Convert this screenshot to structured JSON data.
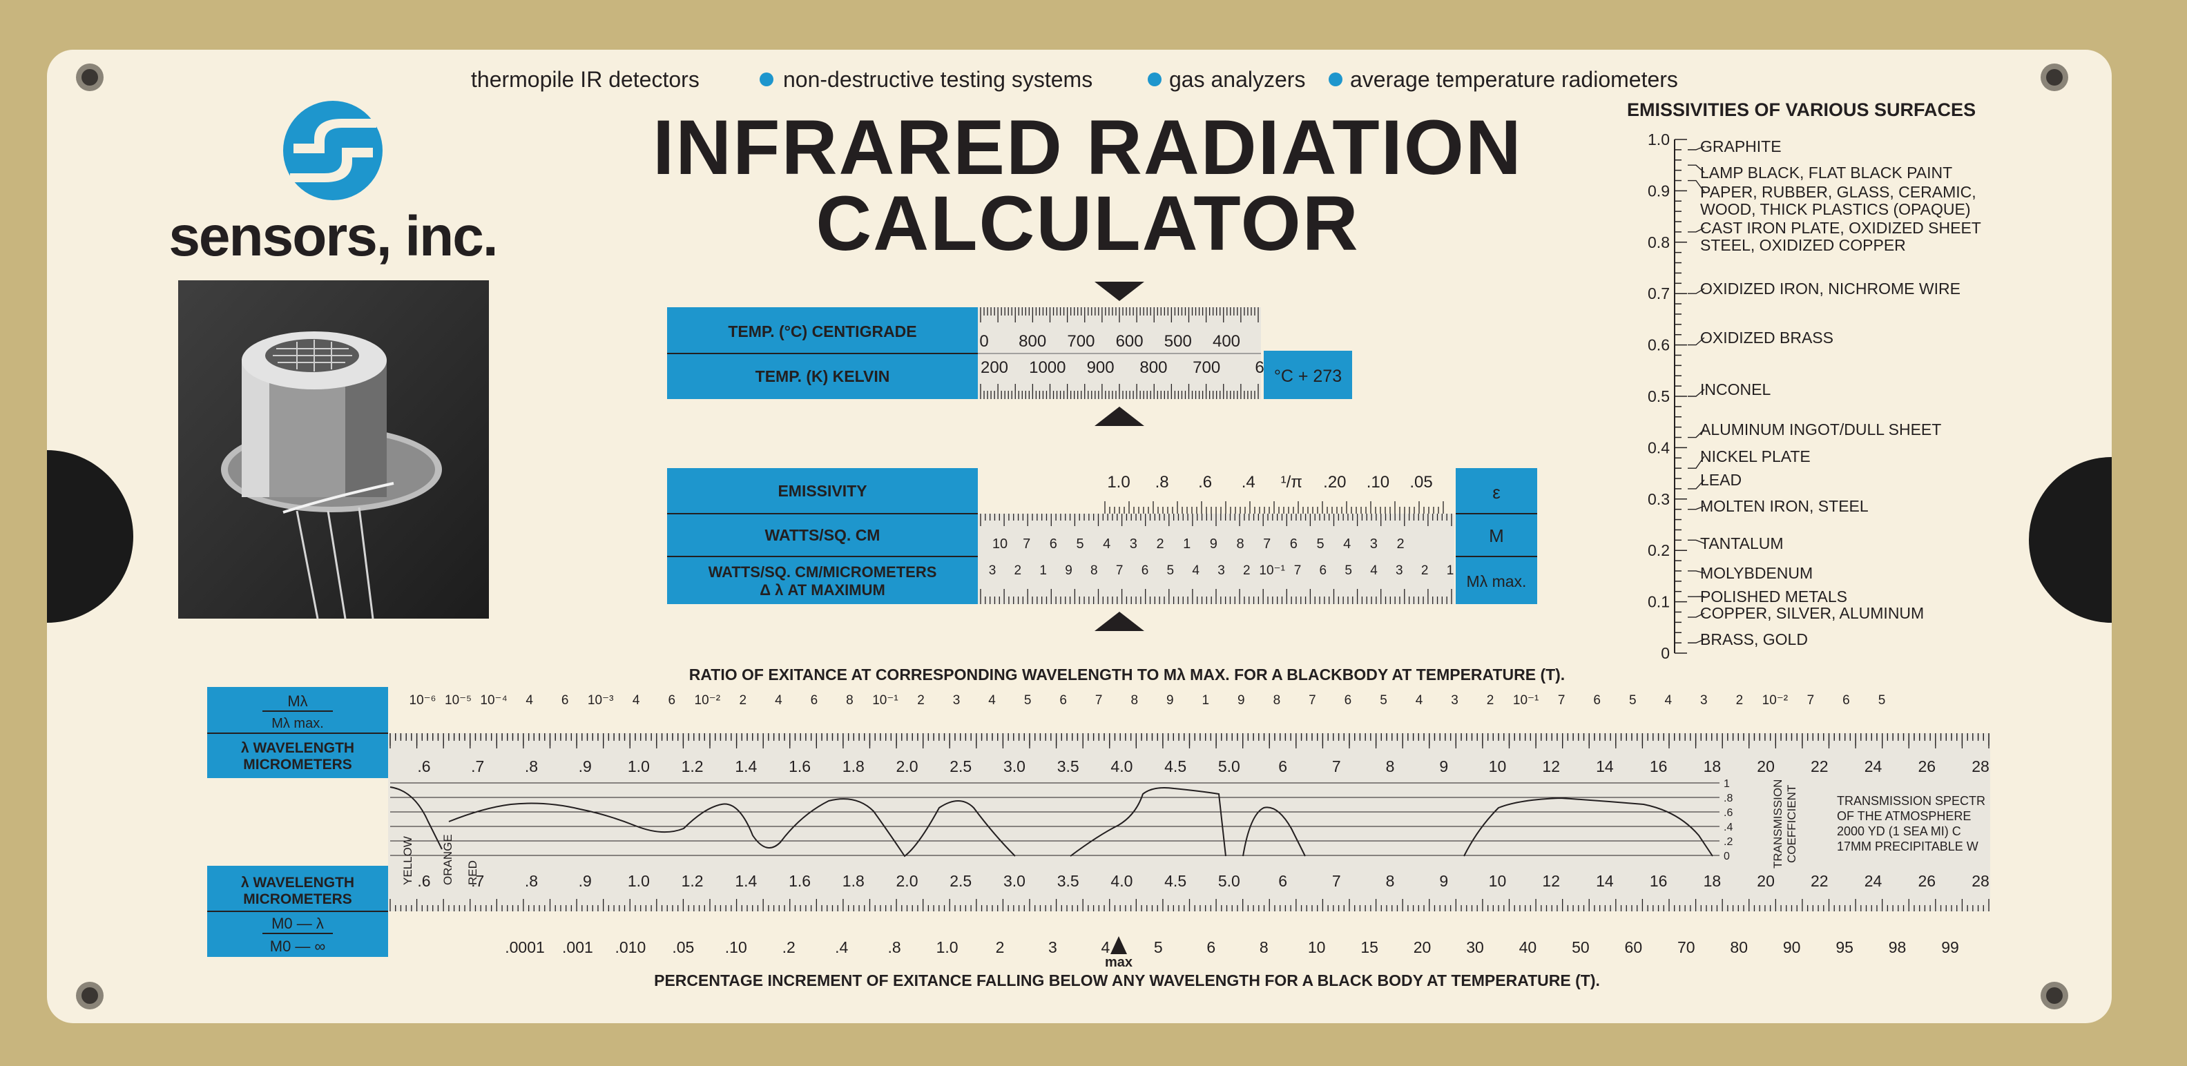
{
  "tagline": {
    "items": [
      "thermopile IR detectors",
      "non-destructive testing systems",
      "gas analyzers",
      "average temperature radiometers"
    ],
    "bullet_color": "#1e96cd"
  },
  "brand": {
    "name": "sensors, inc.",
    "logo_icon": "s-logo-icon",
    "photo_icon": "thermopile-detector-photo"
  },
  "title": {
    "line1": "INFRARED RADIATION",
    "line2": "CALCULATOR"
  },
  "colors": {
    "card": "#f7f0df",
    "background": "#c8b57e",
    "accent": "#1e96cd",
    "ink": "#231f20",
    "slide": "#e9e6de"
  },
  "temperature": {
    "label_c": "TEMP. (°C) CENTIGRADE",
    "label_k": "TEMP. (K) KELVIN",
    "formula": "°C + 273",
    "c_ticks": [
      "0",
      "800",
      "700",
      "600",
      "500",
      "400"
    ],
    "k_ticks": [
      "200",
      "1000",
      "900",
      "800",
      "700",
      "6"
    ]
  },
  "emissivity_block": {
    "label_e": "EMISSIVITY",
    "label_w": "WATTS/SQ. CM",
    "label_wm1": "WATTS/SQ. CM/MICROMETERS",
    "label_wm2": "Δ λ AT MAXIMUM",
    "sym_e": "ε",
    "sym_m": "M",
    "sym_mmax": "Mλ max.",
    "e_ticks": [
      "1.0",
      ".8",
      ".6",
      ".4",
      "¹/π",
      ".20",
      ".10",
      ".05"
    ],
    "w_ticks": [
      "10",
      "7",
      "6",
      "5",
      "4",
      "3",
      "2",
      "1",
      "9",
      "8",
      "7",
      "6",
      "5",
      "4",
      "3",
      "2"
    ],
    "wm_ticks": [
      "3",
      "2",
      "1",
      "9",
      "8",
      "7",
      "6",
      "5",
      "4",
      "3",
      "2",
      "10⁻¹",
      "7",
      "6",
      "5",
      "4",
      "3",
      "2",
      "1"
    ]
  },
  "emissivities": {
    "title": "EMISSIVITIES OF VARIOUS SURFACES",
    "scale": [
      "1.0",
      "0.9",
      "0.8",
      "0.7",
      "0.6",
      "0.5",
      "0.4",
      "0.3",
      "0.2",
      "0.1",
      "0"
    ],
    "items": [
      {
        "label": "GRAPHITE",
        "value": 0.98
      },
      {
        "label": "LAMP BLACK, FLAT BLACK PAINT",
        "value": 0.95
      },
      {
        "label": "PAPER, RUBBER, GLASS, CERAMIC,",
        "label2": "WOOD, THICK PLASTICS (OPAQUE)",
        "value": 0.92
      },
      {
        "label": "CAST IRON PLATE, OXIDIZED SHEET",
        "label2": "STEEL, OXIDIZED COPPER",
        "value": 0.82
      },
      {
        "label": "OXIDIZED IRON, NICHROME WIRE",
        "value": 0.7
      },
      {
        "label": "OXIDIZED BRASS",
        "value": 0.6
      },
      {
        "label": "INCONEL",
        "value": 0.5
      },
      {
        "label": "ALUMINUM INGOT/DULL SHEET",
        "value": 0.42
      },
      {
        "label": "NICKEL PLATE",
        "value": 0.36
      },
      {
        "label": "LEAD",
        "value": 0.32
      },
      {
        "label": "MOLTEN IRON, STEEL",
        "value": 0.28
      },
      {
        "label": "TANTALUM",
        "value": 0.22
      },
      {
        "label": "MOLYBDENUM",
        "value": 0.16
      },
      {
        "label": "POLISHED METALS",
        "value": 0.11
      },
      {
        "label": "COPPER, SILVER, ALUMINUM",
        "value": 0.07
      },
      {
        "label": "BRASS, GOLD",
        "value": 0.02
      }
    ]
  },
  "spectrum": {
    "top_caption": "RATIO OF EXITANCE AT CORRESPONDING WAVELENGTH TO Mλ MAX. FOR A BLACKBODY AT TEMPERATURE (T).",
    "bottom_caption": "PERCENTAGE INCREMENT OF EXITANCE FALLING BELOW ANY WAVELENGTH FOR A BLACK BODY AT TEMPERATURE (T).",
    "label_ratio_top": "Mλ",
    "label_ratio_bottom": "Mλ max.",
    "label_wave1": "λ WAVELENGTH",
    "label_wave2": "MICROMETERS",
    "label_pct_top": "M0 — λ",
    "label_pct_bottom": "M0 — ∞",
    "ratio_ticks": [
      "10⁻⁶",
      "10⁻⁵",
      "10⁻⁴",
      "4",
      "6",
      "10⁻³",
      "4",
      "6",
      "10⁻²",
      "2",
      "4",
      "6",
      "8",
      "10⁻¹",
      "2",
      "3",
      "4",
      "5",
      "6",
      "7",
      "8",
      "9",
      "1",
      "9",
      "8",
      "7",
      "6",
      "5",
      "4",
      "3",
      "2",
      "10⁻¹",
      "7",
      "6",
      "5",
      "4",
      "3",
      "2",
      "10⁻²",
      "7",
      "6",
      "5"
    ],
    "wavelength_ticks": [
      ".6",
      ".7",
      ".8",
      ".9",
      "1.0",
      "1.2",
      "1.4",
      "1.6",
      "1.8",
      "2.0",
      "2.5",
      "3.0",
      "3.5",
      "4.0",
      "4.5",
      "5.0",
      "6",
      "7",
      "8",
      "9",
      "10",
      "12",
      "14",
      "16",
      "18",
      "20",
      "22",
      "24",
      "26",
      "28"
    ],
    "pct_ticks": [
      ".0001",
      ".001",
      ".010",
      ".05",
      ".10",
      ".2",
      ".4",
      ".8",
      "1.0",
      "2",
      "3",
      "4",
      "5",
      "6",
      "8",
      "10",
      "15",
      "20",
      "30",
      "40",
      "50",
      "60",
      "70",
      "80",
      "90",
      "95",
      "98",
      "99"
    ],
    "max_label": "max",
    "color_labels": [
      "YELLOW",
      "ORANGE",
      "RED"
    ],
    "transmission_label1": "TRANSMISSION",
    "transmission_label2": "COEFFICIENT",
    "transmission_scale": [
      "1",
      ".8",
      ".6",
      ".4",
      ".2",
      "0"
    ],
    "note": [
      "TRANSMISSION SPECTR",
      "OF THE ATMOSPHERE",
      "2000 YD (1 SEA MI) C",
      "17MM PRECIPITABLE W"
    ]
  }
}
